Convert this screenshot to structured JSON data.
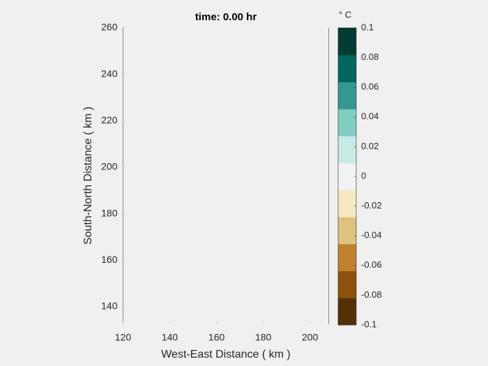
{
  "chart_data": {
    "type": "contour",
    "title": "time: 0.00 hr",
    "xlabel": "West-East Distance ( km )",
    "ylabel": "South-North Distance ( km )",
    "xlim": [
      120,
      208
    ],
    "xticks": [
      120,
      140,
      160,
      180,
      200
    ],
    "ylim": [
      132.5,
      260
    ],
    "yticks": [
      140,
      160,
      180,
      200,
      220,
      240,
      260
    ],
    "colorbar": {
      "label": "° C",
      "clim": [
        -0.1,
        0.1
      ],
      "ticks": [
        0.1,
        0.08,
        0.06,
        0.04,
        0.02,
        0,
        -0.02,
        -0.04,
        -0.06,
        -0.08,
        -0.1
      ],
      "colors": [
        "#543005",
        "#8c510a",
        "#bf812d",
        "#dfc27d",
        "#f6e8c3",
        "#f2f2f2",
        "#c7eae5",
        "#80cdc1",
        "#35978f",
        "#01665e",
        "#003c30"
      ]
    }
  }
}
